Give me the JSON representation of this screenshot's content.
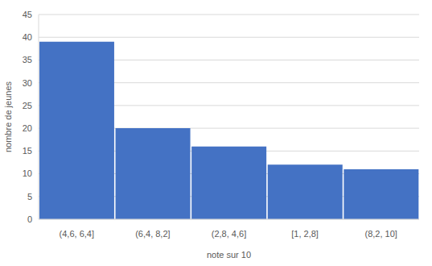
{
  "chart_data": {
    "type": "bar",
    "categories": [
      "(4,6, 6,4]",
      "(6,4, 8,2]",
      "(2,8, 4,6]",
      "[1, 2,8]",
      "(8,2, 10]"
    ],
    "values": [
      39,
      20,
      16,
      12,
      11
    ],
    "color": "#4472c4",
    "x_label": "note sur 10",
    "y_label": "nombre de jeunes",
    "ylim": [
      0,
      45
    ],
    "yticks": [
      0,
      5,
      10,
      15,
      20,
      25,
      30,
      35,
      40,
      45
    ],
    "grid": true
  }
}
